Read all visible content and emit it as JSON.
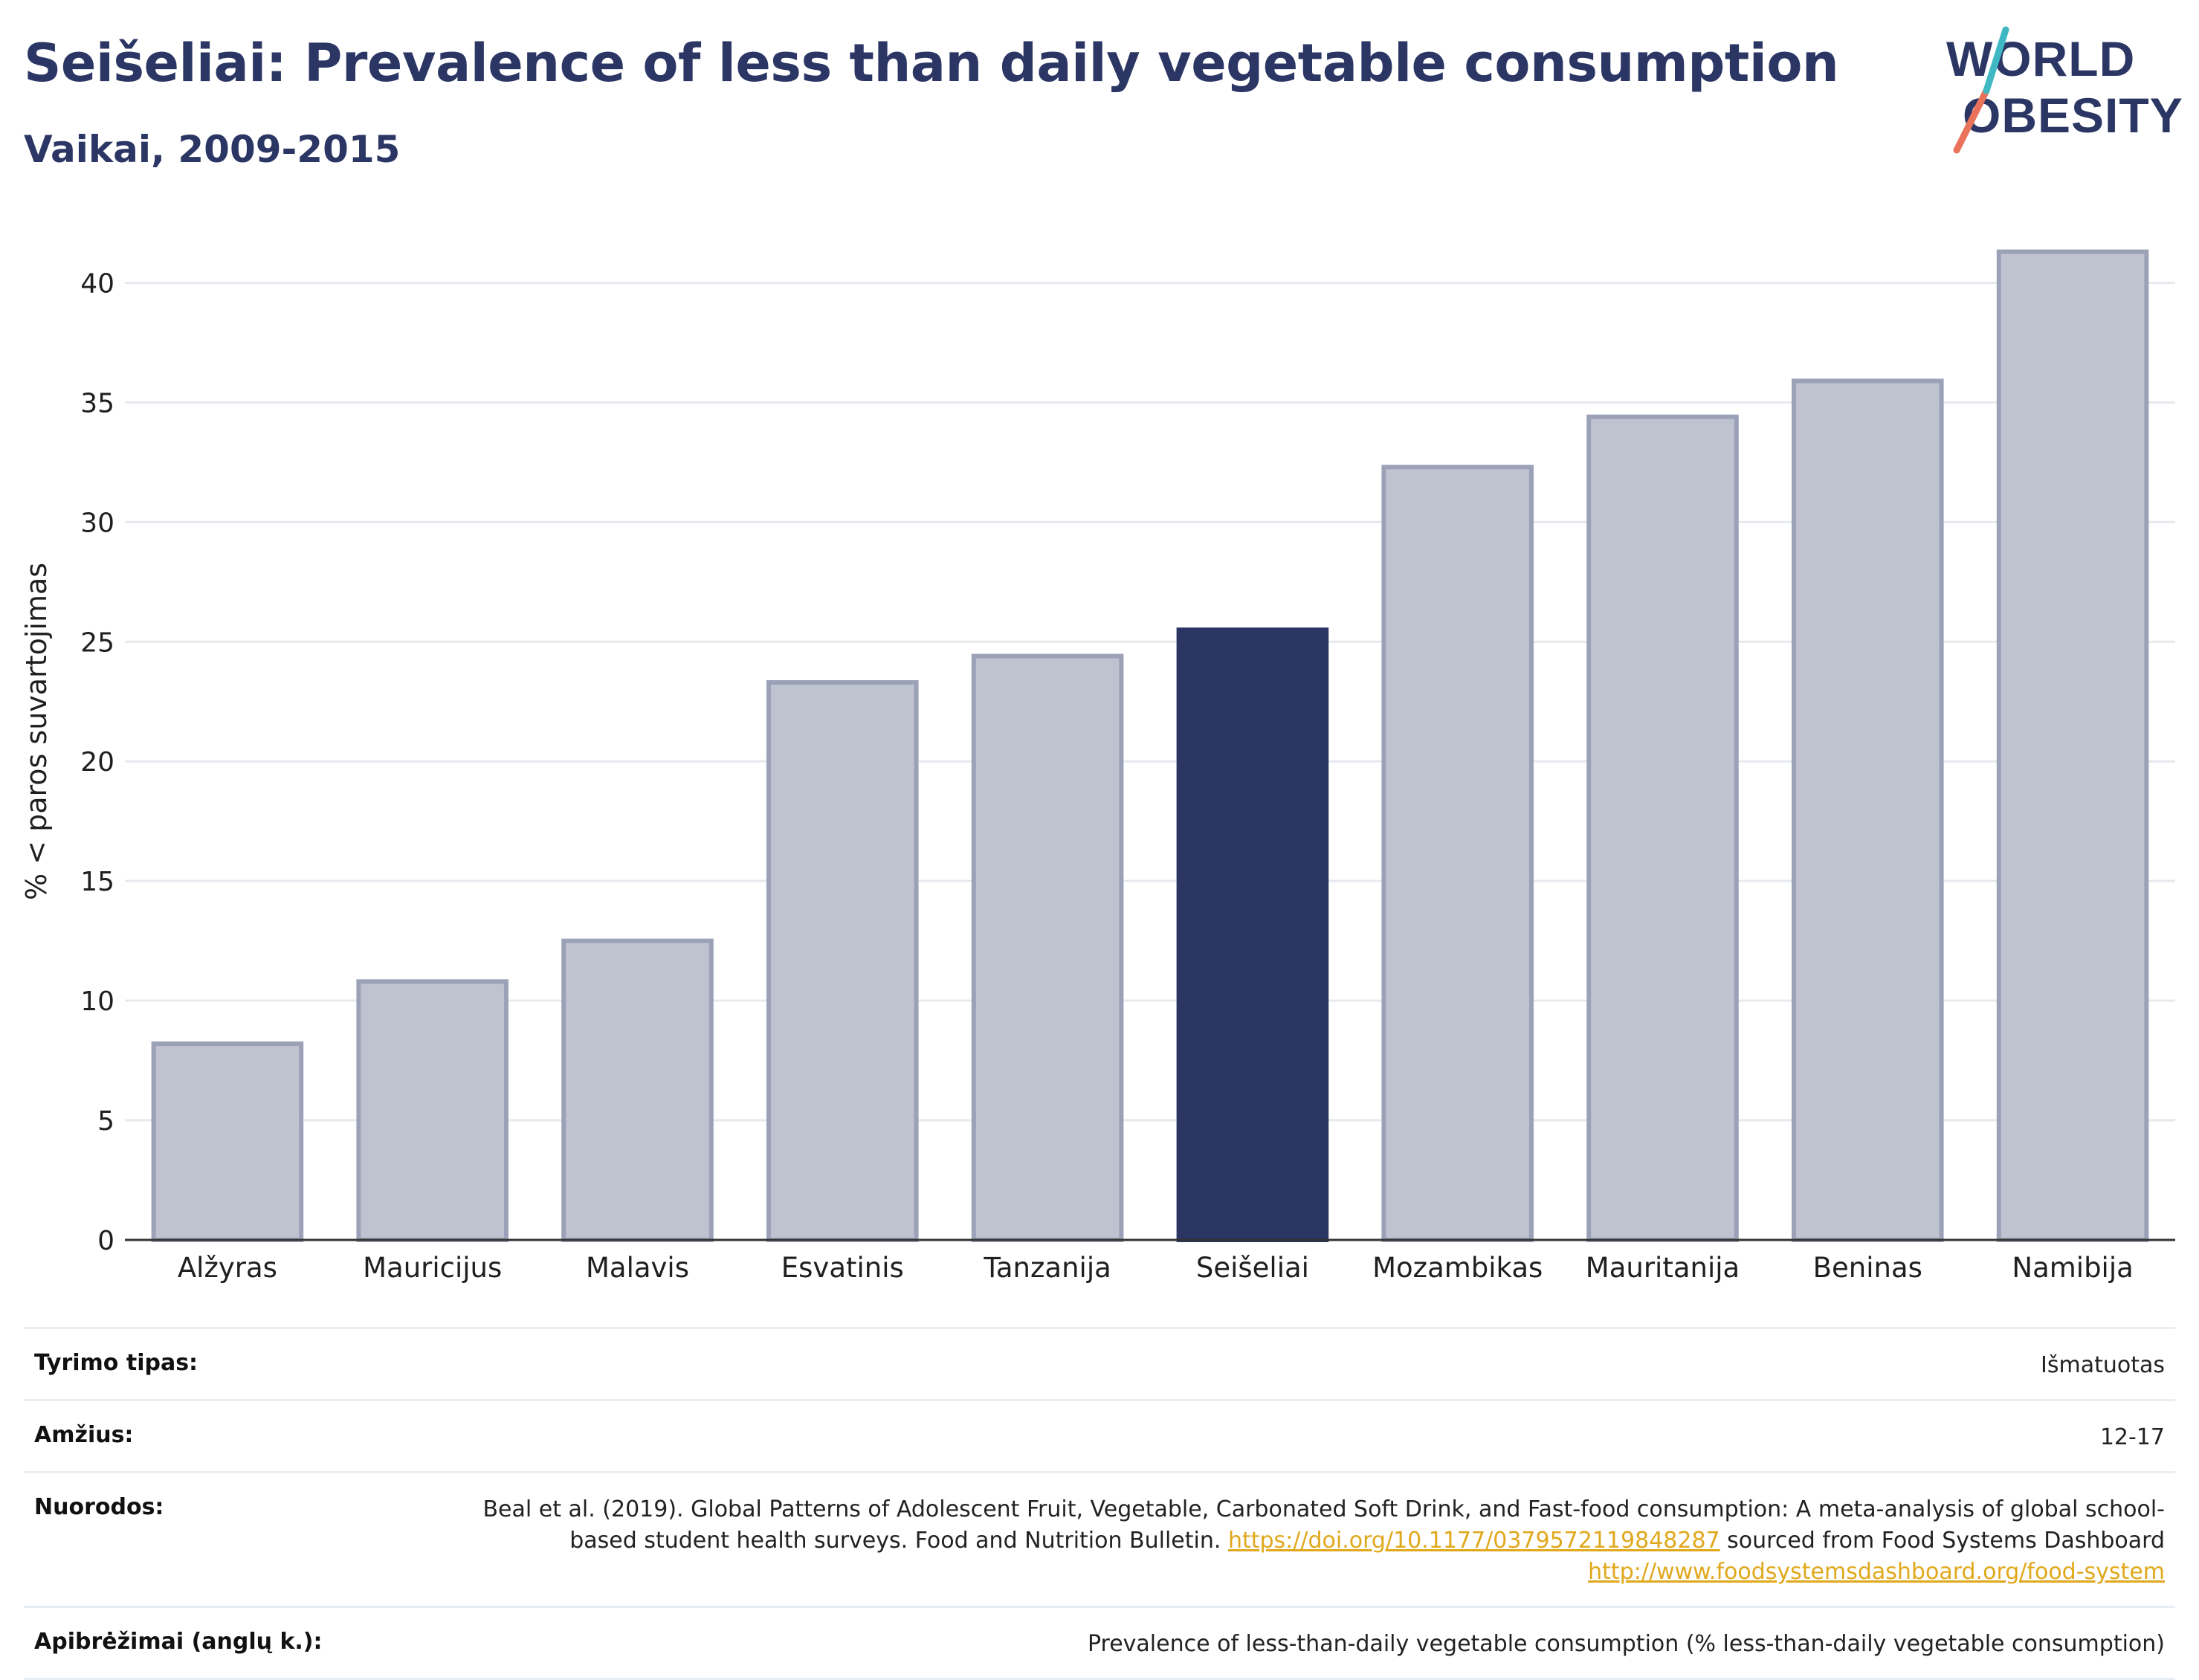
{
  "title": "Seišeliai: Prevalence of less than daily vegetable consumption",
  "subtitle": "Vaikai, 2009-2015",
  "logo": {
    "line1": "WORLD",
    "line2": "OBESITY"
  },
  "colors": {
    "highlight": "#2b3664",
    "bar": "#bfc3d0",
    "bar_edge": "#9ba2b8",
    "grid": "#e6e9ee",
    "link": "#e0a81c"
  },
  "chart_data": {
    "type": "bar",
    "ylabel": "% < paros suvartojimas",
    "ylim": [
      0,
      42.5
    ],
    "yticks": [
      0,
      5,
      10,
      15,
      20,
      25,
      30,
      35,
      40
    ],
    "categories": [
      "Alžyras",
      "Mauricijus",
      "Malavis",
      "Esvatinis",
      "Tanzanija",
      "Seišeliai",
      "Mozambikas",
      "Mauritanija",
      "Beninas",
      "Namibija"
    ],
    "values": [
      8.2,
      10.8,
      12.5,
      23.3,
      24.4,
      25.5,
      32.3,
      34.4,
      35.9,
      41.3
    ],
    "highlight": "Seišeliai",
    "grid": true
  },
  "meta": {
    "rows": [
      {
        "key": "Tyrimo tipas:",
        "value": "Išmatuotas"
      },
      {
        "key": "Amžius:",
        "value": "12-17"
      },
      {
        "key": "Nuorodos:",
        "value_parts": {
          "text1": "Beal et al. (2019). Global Patterns of Adolescent Fruit, Vegetable, Carbonated Soft Drink, and Fast-food consumption: A meta-analysis of global school-based student health surveys. Food and Nutrition Bulletin.",
          "link1": "https://doi.org/10.1177/0379572119848287",
          "text2": "sourced from Food Systems Dashboard",
          "link2": "http://www.foodsystemsdashboard.org/food-system"
        }
      },
      {
        "key": "Apibrėžimai (anglų k.):",
        "value": "Prevalence of less-than-daily vegetable consumption (% less-than-daily vegetable consumption)"
      }
    ]
  }
}
